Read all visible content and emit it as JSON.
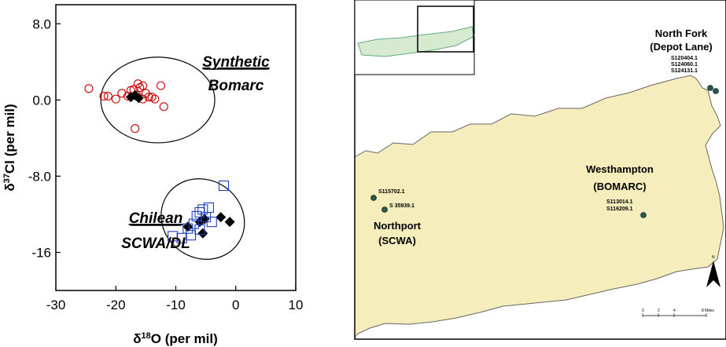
{
  "chart_data": {
    "type": "scatter",
    "title": "",
    "xlabel_main": "δ",
    "xlabel_sup": "18",
    "xlabel_rest": "O (per mil)",
    "ylabel_main": "δ",
    "ylabel_sup": "37",
    "ylabel_rest": "Cl (per mil)",
    "xlim": [
      -30,
      10
    ],
    "ylim": [
      -20,
      10
    ],
    "x_ticks": [
      -30,
      -20,
      -10,
      0,
      10
    ],
    "y_ticks": [
      8.0,
      0.0,
      -8.0,
      -16
    ],
    "y_tick_labels": [
      "8.0",
      "0.0",
      "-8.0",
      "-16"
    ],
    "grid": false,
    "groups": [
      {
        "label_line1": "Synthetic",
        "label_line2": "Bomarc",
        "center": [
          -13,
          0
        ],
        "radii": [
          9.5,
          4.5
        ],
        "tilt": 0
      },
      {
        "label_line1": "Chilean",
        "label_line2": "SCWA/DL",
        "center": [
          -5.5,
          -12.5
        ],
        "radii": [
          6.5,
          4.5
        ],
        "tilt": -55
      }
    ],
    "series": [
      {
        "marker": "open-circle",
        "color": "#cc0000",
        "points": [
          [
            -24.5,
            1.2
          ],
          [
            -22,
            0.4
          ],
          [
            -21.3,
            0.4
          ],
          [
            -20,
            0.1
          ],
          [
            -19,
            0.7
          ],
          [
            -18,
            0.4
          ],
          [
            -17.5,
            1.0
          ],
          [
            -17,
            1.1
          ],
          [
            -16.5,
            0.5
          ],
          [
            -16.3,
            1.7
          ],
          [
            -16.0,
            1.3
          ],
          [
            -15.5,
            1.5
          ],
          [
            -15,
            0.7
          ],
          [
            -14.5,
            0.3
          ],
          [
            -14,
            0.3
          ],
          [
            -13.5,
            0.1
          ],
          [
            -12.5,
            1.5
          ],
          [
            -12,
            -0.7
          ],
          [
            -16.8,
            -3.0
          ],
          [
            -15.5,
            0.1
          ]
        ]
      },
      {
        "marker": "filled-diamond",
        "color": "#000000",
        "points": [
          [
            -17.5,
            0.3
          ],
          [
            -16.8,
            0.5
          ],
          [
            -16.2,
            0.2
          ],
          [
            -8,
            -13.3
          ],
          [
            -6,
            -12.8
          ],
          [
            -5.2,
            -12.5
          ],
          [
            -5.5,
            -14.0
          ],
          [
            -2.5,
            -12.3
          ],
          [
            -1,
            -12.8
          ]
        ]
      },
      {
        "marker": "open-square",
        "color": "#1f3fbf",
        "points": [
          [
            -10.5,
            -14.3
          ],
          [
            -9,
            -14.5
          ],
          [
            -7.5,
            -14.2
          ],
          [
            -8,
            -13.5
          ],
          [
            -7,
            -13.0
          ],
          [
            -6.5,
            -12.2
          ],
          [
            -6,
            -11.8
          ],
          [
            -5.5,
            -11.5
          ],
          [
            -5,
            -12.3
          ],
          [
            -4.5,
            -11.3
          ],
          [
            -4,
            -12.8
          ],
          [
            -6,
            -13.6
          ],
          [
            -2,
            -9.0
          ]
        ]
      }
    ]
  },
  "map": {
    "regions": [
      {
        "name": "North Fork",
        "sub": "(Depot Lane)",
        "samples": [
          "S120404.1",
          "S124060.1",
          "S124131.1"
        ]
      },
      {
        "name": "Westhampton",
        "sub": "(BOMARC)",
        "samples": [
          "S113014.1",
          "S116209.1"
        ]
      },
      {
        "name": "Northport",
        "sub": "(SCWA)",
        "samples": [
          "S115702.1",
          "S 35939.1"
        ]
      }
    ],
    "scale": {
      "ticks": [
        "0",
        "2",
        "4",
        "8 Miles"
      ]
    },
    "north_label": "N",
    "land_color": "#f5eebc",
    "water_color": "#ffffff",
    "inset_land_color": "#d6ead0"
  }
}
